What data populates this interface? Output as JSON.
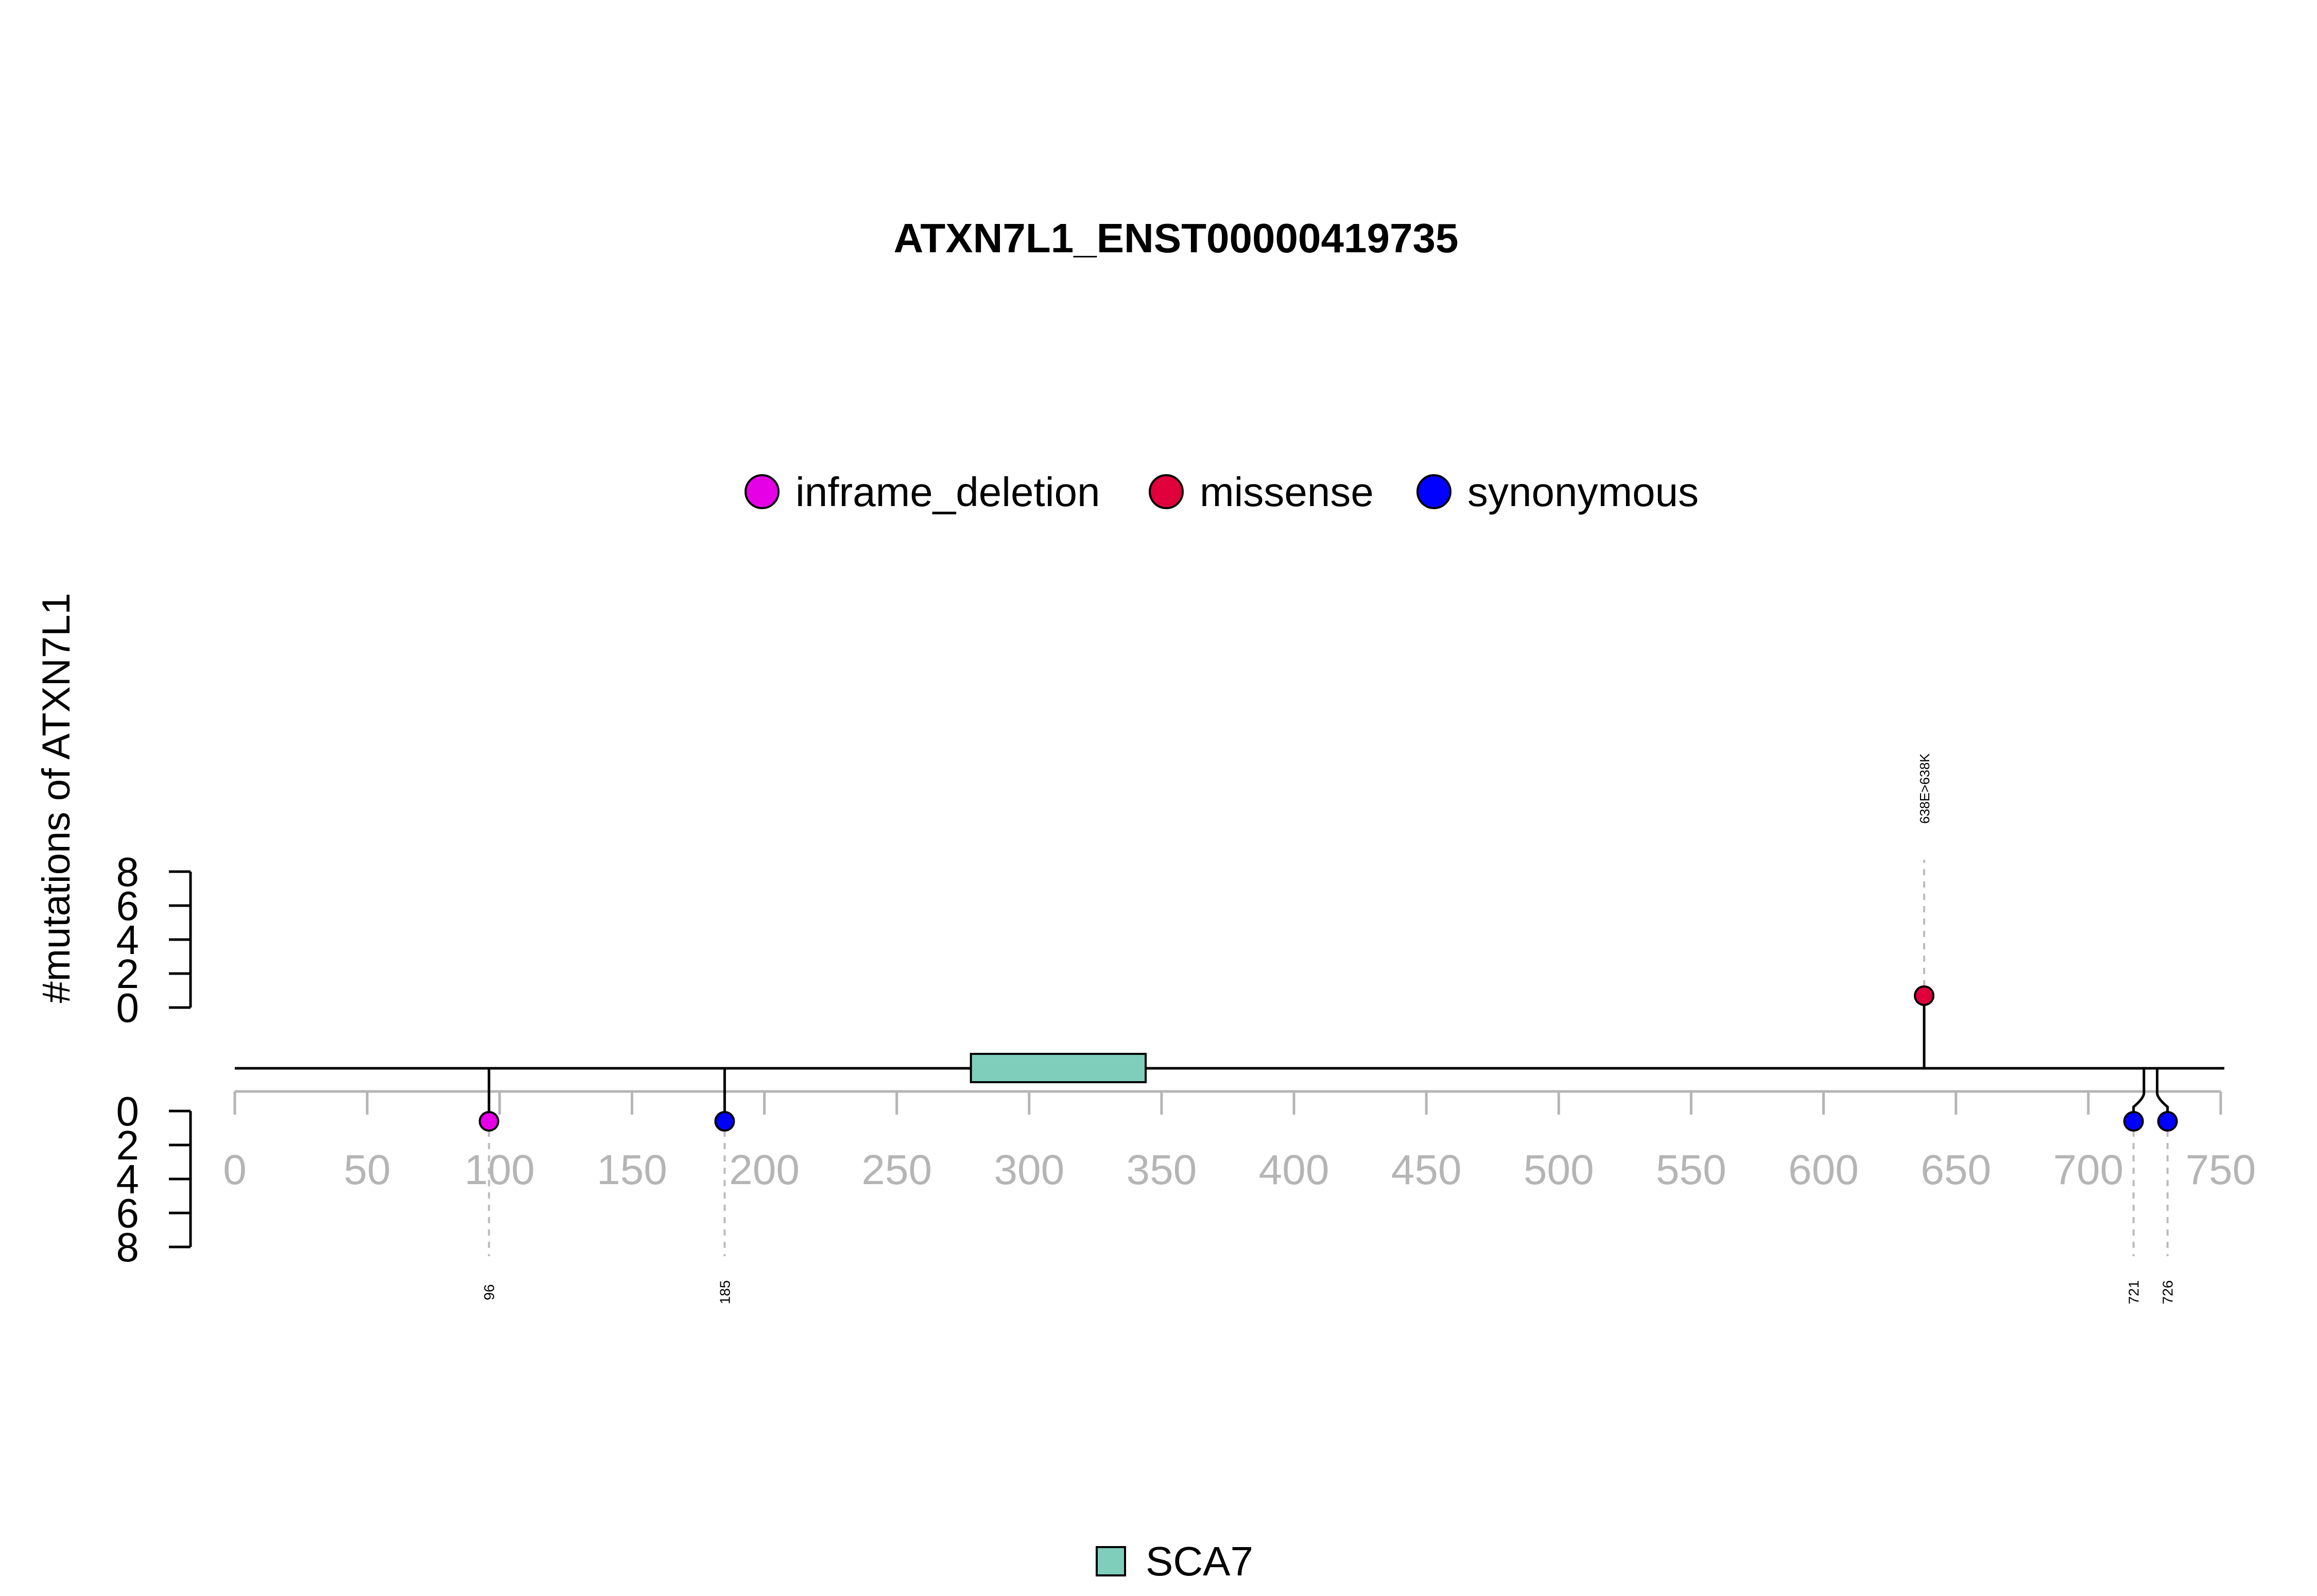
{
  "chart_data": {
    "type": "lollipop",
    "title": "ATXN7L1_ENST00000419735",
    "ylabel": "#mutations of ATXN7L1",
    "xlim": [
      0,
      750
    ],
    "x_ticks": [
      0,
      50,
      100,
      150,
      200,
      250,
      300,
      350,
      400,
      450,
      500,
      550,
      600,
      650,
      700,
      750
    ],
    "y_ticks": [
      0,
      2,
      4,
      6,
      8
    ],
    "legend": {
      "placement": "top-center",
      "entries": [
        {
          "name": "inframe_deletion",
          "color": "#E600E6"
        },
        {
          "name": "missense",
          "color": "#E0003C"
        },
        {
          "name": "synonymous",
          "color": "#0000FF"
        }
      ]
    },
    "domain_legend": {
      "placement": "bottom-center",
      "entries": [
        {
          "name": "SCA7",
          "color": "#7FCDBB"
        }
      ]
    },
    "domains": [
      {
        "name": "SCA7",
        "start": 278,
        "end": 344,
        "color": "#7FCDBB"
      }
    ],
    "mutations": [
      {
        "position": 96,
        "label": "96",
        "type": "inframe_deletion",
        "count": 1,
        "side": "bottom"
      },
      {
        "position": 185,
        "label": "185",
        "type": "synonymous",
        "count": 1,
        "side": "bottom"
      },
      {
        "position": 638,
        "label": "638E>638K",
        "type": "missense",
        "count": 1,
        "side": "top"
      },
      {
        "position": 721,
        "label": "721",
        "type": "synonymous",
        "count": 1,
        "side": "bottom"
      },
      {
        "position": 726,
        "label": "726",
        "type": "synonymous",
        "count": 1,
        "side": "bottom"
      }
    ]
  }
}
